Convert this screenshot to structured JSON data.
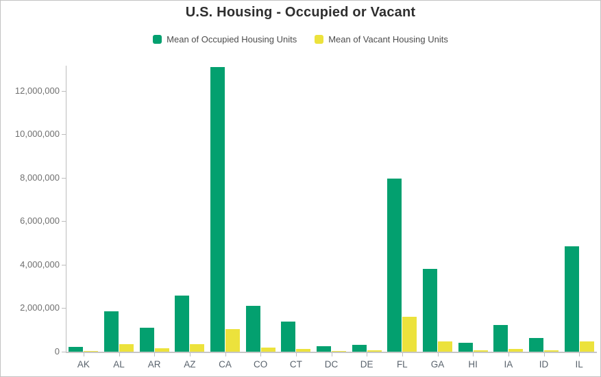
{
  "title": "U.S. Housing - Occupied or Vacant",
  "colors": {
    "occupied": "#03a06f",
    "vacant": "#ece23c",
    "axis": "#bcbcbc",
    "y_tick_label": "#6f6f6f",
    "x_tick_label": "#59626c",
    "title_text": "#2e2e2e",
    "legend_text": "#4c4c4c"
  },
  "legend": {
    "items": [
      {
        "label": "Mean of Occupied Housing Units",
        "color_key": "occupied"
      },
      {
        "label": "Mean of Vacant Housing Units",
        "color_key": "vacant"
      }
    ],
    "position": "top"
  },
  "chart_data": {
    "type": "bar",
    "title": "U.S. Housing - Occupied or Vacant",
    "xlabel": "",
    "ylabel": "",
    "categories": [
      "AK",
      "AL",
      "AR",
      "AZ",
      "CA",
      "CO",
      "CT",
      "DC",
      "DE",
      "FL",
      "GA",
      "HI",
      "IA",
      "ID",
      "IL"
    ],
    "series": [
      {
        "name": "Mean of Occupied Housing Units",
        "color": "#03a06f",
        "values": [
          230000,
          1860000,
          1100000,
          2570000,
          13100000,
          2100000,
          1380000,
          260000,
          330000,
          7950000,
          3810000,
          420000,
          1240000,
          620000,
          4860000
        ]
      },
      {
        "name": "Mean of Vacant Housing Units",
        "color": "#ece23c",
        "values": [
          40000,
          350000,
          170000,
          350000,
          1040000,
          200000,
          120000,
          25000,
          70000,
          1600000,
          470000,
          55000,
          120000,
          60000,
          460000
        ]
      }
    ],
    "ylim": [
      0,
      13200000
    ],
    "yticks": [
      0,
      2000000,
      4000000,
      6000000,
      8000000,
      10000000,
      12000000
    ],
    "ytick_labels": [
      "0",
      "2,000,000",
      "4,000,000",
      "6,000,000",
      "8,000,000",
      "10,000,000",
      "12,000,000"
    ],
    "grid": false,
    "legend_position": "top"
  }
}
